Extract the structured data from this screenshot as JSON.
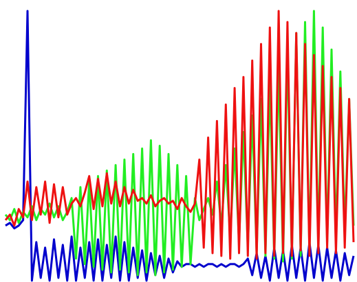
{
  "chart_data": {
    "type": "line",
    "ylim": [
      0,
      100
    ],
    "series": [
      {
        "color": "#0000cc",
        "values": [
          20,
          21,
          19,
          20,
          22,
          98,
          0,
          14,
          1,
          12,
          0,
          15,
          1,
          13,
          0,
          16,
          0,
          12,
          1,
          14,
          0,
          15,
          0,
          13,
          1,
          16,
          0,
          14,
          0,
          12,
          1,
          11,
          0,
          10,
          2,
          9,
          1,
          8,
          3,
          7,
          5,
          6,
          6,
          5,
          6,
          5,
          6,
          6,
          5,
          6,
          5,
          6,
          6,
          5,
          6,
          8,
          2,
          10,
          1,
          9,
          0,
          12,
          1,
          11,
          0,
          13,
          1,
          12,
          0,
          14,
          1,
          13,
          0,
          12,
          1,
          11,
          0,
          10,
          2,
          9
        ]
      },
      {
        "color": "#22ee22",
        "values": [
          24,
          22,
          26,
          21,
          25,
          23,
          27,
          22,
          26,
          24,
          28,
          23,
          27,
          22,
          25,
          30,
          8,
          34,
          6,
          36,
          5,
          38,
          4,
          40,
          3,
          42,
          4,
          44,
          3,
          46,
          2,
          48,
          3,
          51,
          2,
          49,
          3,
          46,
          4,
          42,
          5,
          38,
          6,
          30,
          22,
          26,
          30,
          24,
          36,
          20,
          42,
          16,
          48,
          14,
          54,
          12,
          60,
          10,
          66,
          9,
          72,
          8,
          78,
          7,
          84,
          8,
          90,
          9,
          94,
          10,
          98,
          12,
          92,
          14,
          84,
          16,
          76,
          18,
          66,
          20
        ]
      },
      {
        "color": "#ee1111",
        "values": [
          22,
          24,
          20,
          26,
          23,
          36,
          22,
          34,
          24,
          36,
          21,
          35,
          23,
          34,
          24,
          28,
          30,
          27,
          32,
          38,
          26,
          37,
          27,
          39,
          28,
          36,
          27,
          34,
          28,
          33,
          29,
          30,
          28,
          31,
          27,
          29,
          30,
          28,
          29,
          26,
          30,
          27,
          25,
          28,
          44,
          12,
          52,
          10,
          58,
          9,
          64,
          8,
          70,
          10,
          74,
          9,
          80,
          8,
          86,
          10,
          92,
          9,
          98,
          10,
          94,
          9,
          90,
          11,
          86,
          9,
          82,
          10,
          78,
          12,
          74,
          10,
          70,
          12,
          66,
          14
        ]
      }
    ]
  }
}
